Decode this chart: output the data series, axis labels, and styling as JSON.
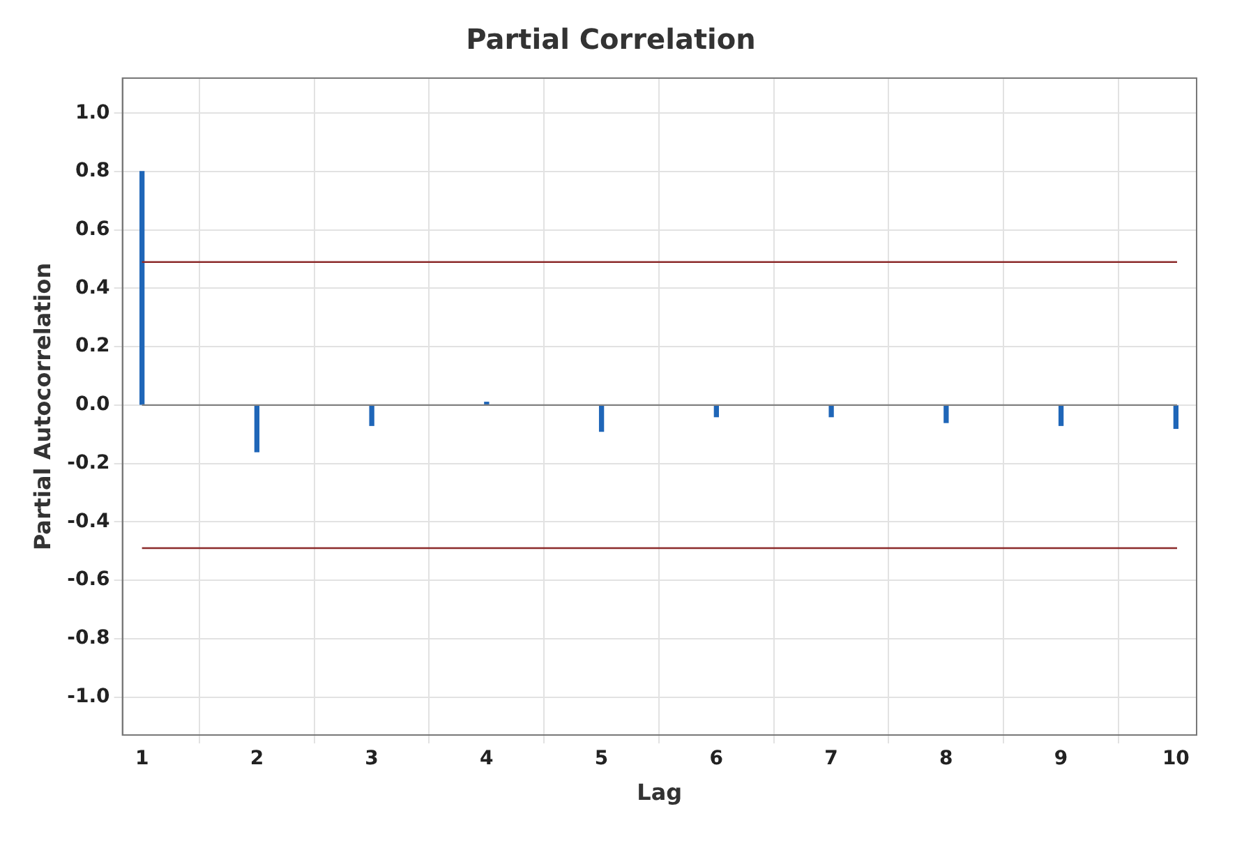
{
  "chart_data": {
    "type": "bar",
    "title": "Partial Correlation",
    "xlabel": "Lag",
    "ylabel": "Partial Autocorrelation",
    "x": [
      1,
      2,
      3,
      4,
      5,
      6,
      7,
      8,
      9,
      10
    ],
    "values": [
      0.8,
      -0.16,
      -0.07,
      0.01,
      -0.09,
      -0.04,
      -0.04,
      -0.06,
      -0.07,
      -0.08
    ],
    "color": "#1f66b8",
    "xlim": [
      0.83,
      10.18
    ],
    "xticks": [
      1,
      2,
      3,
      4,
      5,
      6,
      7,
      8,
      9,
      10
    ],
    "ylim": [
      -1.13,
      1.12
    ],
    "yticks": [
      {
        "value": -1,
        "label": "-1.0"
      },
      {
        "value": -0.8,
        "label": "-0.8"
      },
      {
        "value": -0.6,
        "label": "-0.6"
      },
      {
        "value": -0.4,
        "label": "-0.4"
      },
      {
        "value": -0.2,
        "label": "-0.2"
      },
      {
        "value": 0,
        "label": "0.0"
      },
      {
        "value": 0.2,
        "label": "0.2"
      },
      {
        "value": 0.4,
        "label": "0.4"
      },
      {
        "value": 0.6,
        "label": "0.6"
      },
      {
        "value": 0.8,
        "label": "0.8"
      },
      {
        "value": 1,
        "label": "1.0"
      }
    ],
    "ref_lines": [
      {
        "axis": "y",
        "value": 0.49,
        "color": "#8b2a2a"
      },
      {
        "axis": "y",
        "value": -0.49,
        "color": "#8b2a2a"
      },
      {
        "axis": "y",
        "value": 0,
        "color": "#808080"
      }
    ],
    "grid": true
  }
}
